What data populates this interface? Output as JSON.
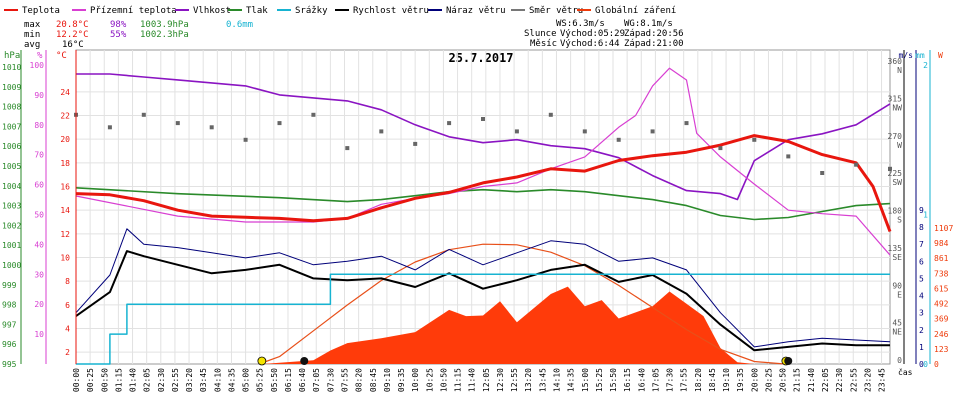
{
  "chart_data": {
    "type": "line",
    "title": "25.7.2017",
    "legend": [
      {
        "label": "Teplota",
        "color": "#e8160e"
      },
      {
        "label": "Přízemní teplota",
        "color": "#d83fd2"
      },
      {
        "label": "Vlhkost",
        "color": "#8a14c2"
      },
      {
        "label": "Tlak",
        "color": "#2a8a2a"
      },
      {
        "label": "Srážky",
        "color": "#17b3d1"
      },
      {
        "label": "Rychlost větru",
        "color": "#000000"
      },
      {
        "label": "Náraz větru",
        "color": "#00007a"
      },
      {
        "label": "Směr větru",
        "color": "#777777"
      },
      {
        "label": "Globální záření",
        "color": "#ee3a0a"
      }
    ],
    "stats": {
      "max_label": "max",
      "max_temp": "20.8°C",
      "max_hum": "98%",
      "max_press": "1003.9hPa",
      "max_rain": "0.6mm",
      "min_label": "min",
      "min_temp": "12.2°C",
      "min_hum": "55%",
      "min_press": "1002.3hPa",
      "avg_label": "avg",
      "avg_temp": "16°C"
    },
    "wind": {
      "ws": "WS:6.3m/s",
      "wg": "WG:8.1m/s"
    },
    "sun": {
      "label": "Slunce",
      "rise": "Východ:05:29",
      "set": "Západ:20:56"
    },
    "moon": {
      "label": "Měsíc",
      "rise": "Východ:6:44",
      "set": "Západ:21:00"
    },
    "axis_units": {
      "pressure": "hPa",
      "humidity": "%",
      "temp": "°C",
      "windspeed": "m/s",
      "rain": "mm",
      "radiation": "W",
      "time": "čas"
    },
    "pressure_ticks": [
      "1010",
      "1009",
      "1008",
      "1007",
      "1006",
      "1005",
      "1004",
      "1003",
      "1002",
      "1001",
      "1000",
      "999",
      "998",
      "997",
      "996",
      "995"
    ],
    "humidity_ticks": [
      "100",
      "90",
      "80",
      "70",
      "60",
      "50",
      "40",
      "30",
      "20",
      "10"
    ],
    "temp_ticks": [
      "24",
      "22",
      "20",
      "18",
      "16",
      "14",
      "12",
      "10",
      "8",
      "6",
      "4",
      "2"
    ],
    "dir_ticks": [
      "360",
      "N",
      "315",
      "NW",
      "270",
      "W",
      "225",
      "SW",
      "180",
      "S",
      "135",
      "SE",
      "90",
      "E",
      "45",
      "NE",
      "0"
    ],
    "windspeed_ticks": [
      "9",
      "8",
      "7",
      "6",
      "5",
      "4",
      "3",
      "2",
      "1",
      "0"
    ],
    "rain_ticks": [
      "2",
      "1",
      "0"
    ],
    "radiation_ticks": [
      "1107",
      "984",
      "861",
      "738",
      "615",
      "492",
      "369",
      "246",
      "123",
      "0"
    ],
    "time_labels": [
      "00:00",
      "00:25",
      "00:50",
      "01:15",
      "01:40",
      "02:05",
      "02:30",
      "02:55",
      "03:20",
      "03:45",
      "04:10",
      "04:35",
      "05:00",
      "05:25",
      "05:50",
      "06:15",
      "06:40",
      "07:05",
      "07:30",
      "07:55",
      "08:20",
      "08:45",
      "09:10",
      "09:35",
      "10:00",
      "10:25",
      "10:50",
      "11:15",
      "11:40",
      "12:05",
      "12:30",
      "12:55",
      "13:20",
      "13:45",
      "14:10",
      "14:35",
      "15:00",
      "15:25",
      "15:50",
      "16:15",
      "16:40",
      "17:05",
      "17:30",
      "17:55",
      "18:20",
      "18:45",
      "19:10",
      "19:35",
      "20:00",
      "20:25",
      "20:50",
      "21:15",
      "21:40",
      "22:05",
      "22:30",
      "22:55",
      "23:20",
      "23:45"
    ],
    "series": {
      "temperature_c": [
        [
          0,
          15.4
        ],
        [
          1,
          15.3
        ],
        [
          2,
          14.8
        ],
        [
          3,
          14.0
        ],
        [
          4,
          13.5
        ],
        [
          5,
          13.4
        ],
        [
          6,
          13.3
        ],
        [
          7,
          13.1
        ],
        [
          8,
          13.3
        ],
        [
          9,
          14.2
        ],
        [
          10,
          15.0
        ],
        [
          11,
          15.5
        ],
        [
          12,
          16.3
        ],
        [
          13,
          16.8
        ],
        [
          14,
          17.5
        ],
        [
          15,
          17.3
        ],
        [
          16,
          18.2
        ],
        [
          17,
          18.6
        ],
        [
          18,
          18.9
        ],
        [
          19,
          19.5
        ],
        [
          20,
          20.3
        ],
        [
          21,
          19.8
        ],
        [
          22,
          18.7
        ],
        [
          23,
          18.0
        ],
        [
          23.5,
          16.0
        ],
        [
          24,
          12.2
        ]
      ],
      "ground_temperature_c": [
        [
          0,
          15.2
        ],
        [
          3,
          13.5
        ],
        [
          5,
          13.0
        ],
        [
          7,
          13.0
        ],
        [
          8,
          13.3
        ],
        [
          9,
          14.5
        ],
        [
          10,
          15.0
        ],
        [
          11,
          15.4
        ],
        [
          12,
          16.0
        ],
        [
          13,
          16.3
        ],
        [
          14,
          17.5
        ],
        [
          15,
          18.5
        ],
        [
          16,
          21.0
        ],
        [
          16.5,
          22.0
        ],
        [
          17,
          24.5
        ],
        [
          17.5,
          26.0
        ],
        [
          18,
          25.0
        ],
        [
          18.3,
          20.5
        ],
        [
          19,
          18.5
        ],
        [
          20,
          16.2
        ],
        [
          21,
          14.0
        ],
        [
          22,
          13.7
        ],
        [
          23,
          13.5
        ],
        [
          24,
          10.2
        ]
      ],
      "humidity_pct": [
        [
          0,
          97
        ],
        [
          1,
          97
        ],
        [
          2,
          96
        ],
        [
          3,
          95
        ],
        [
          4,
          94
        ],
        [
          5,
          93
        ],
        [
          6,
          90
        ],
        [
          7,
          89
        ],
        [
          8,
          88
        ],
        [
          9,
          85
        ],
        [
          10,
          80
        ],
        [
          11,
          76
        ],
        [
          12,
          74
        ],
        [
          13,
          75
        ],
        [
          14,
          73
        ],
        [
          15,
          72
        ],
        [
          16,
          69
        ],
        [
          17,
          63
        ],
        [
          18,
          58
        ],
        [
          19,
          57
        ],
        [
          19.5,
          55
        ],
        [
          20,
          68
        ],
        [
          21,
          75
        ],
        [
          22,
          77
        ],
        [
          23,
          80
        ],
        [
          24,
          87
        ]
      ],
      "pressure_hpa": [
        [
          0,
          1003.9
        ],
        [
          3,
          1003.6
        ],
        [
          6,
          1003.4
        ],
        [
          8,
          1003.2
        ],
        [
          9,
          1003.3
        ],
        [
          10,
          1003.5
        ],
        [
          11,
          1003.7
        ],
        [
          12,
          1003.8
        ],
        [
          13,
          1003.7
        ],
        [
          14,
          1003.8
        ],
        [
          15,
          1003.7
        ],
        [
          16,
          1003.5
        ],
        [
          17,
          1003.3
        ],
        [
          18,
          1003.0
        ],
        [
          19,
          1002.5
        ],
        [
          20,
          1002.3
        ],
        [
          21,
          1002.4
        ],
        [
          22,
          1002.7
        ],
        [
          23,
          1003.0
        ],
        [
          24,
          1003.1
        ]
      ],
      "rain_mm": [
        [
          0,
          0
        ],
        [
          1,
          0.2
        ],
        [
          1.5,
          0.4
        ],
        [
          2,
          0.4
        ],
        [
          7.5,
          0.6
        ],
        [
          24,
          0.6
        ]
      ],
      "wind_speed_ms": [
        [
          0,
          2.8
        ],
        [
          1,
          4.2
        ],
        [
          1.5,
          6.6
        ],
        [
          2,
          6.3
        ],
        [
          3,
          5.8
        ],
        [
          4,
          5.3
        ],
        [
          5,
          5.5
        ],
        [
          6,
          5.8
        ],
        [
          7,
          5.0
        ],
        [
          8,
          4.9
        ],
        [
          9,
          5.0
        ],
        [
          10,
          4.5
        ],
        [
          11,
          5.3
        ],
        [
          12,
          4.4
        ],
        [
          13,
          4.9
        ],
        [
          14,
          5.5
        ],
        [
          15,
          5.8
        ],
        [
          16,
          4.8
        ],
        [
          17,
          5.2
        ],
        [
          18,
          4.1
        ],
        [
          19,
          2.3
        ],
        [
          20,
          0.8
        ],
        [
          21,
          1.0
        ],
        [
          22,
          1.2
        ],
        [
          23,
          1.1
        ],
        [
          24,
          1.1
        ]
      ],
      "wind_gust_ms": [
        [
          0,
          3.0
        ],
        [
          1,
          5.2
        ],
        [
          1.5,
          7.9
        ],
        [
          2,
          7.0
        ],
        [
          3,
          6.8
        ],
        [
          4,
          6.5
        ],
        [
          5,
          6.2
        ],
        [
          6,
          6.5
        ],
        [
          7,
          5.8
        ],
        [
          8,
          6.0
        ],
        [
          9,
          6.3
        ],
        [
          10,
          5.5
        ],
        [
          11,
          6.7
        ],
        [
          12,
          5.8
        ],
        [
          13,
          6.5
        ],
        [
          14,
          7.2
        ],
        [
          15,
          7.0
        ],
        [
          16,
          6.0
        ],
        [
          17,
          6.2
        ],
        [
          18,
          5.5
        ],
        [
          19,
          3.0
        ],
        [
          20,
          1.0
        ],
        [
          21,
          1.3
        ],
        [
          22,
          1.5
        ],
        [
          23,
          1.4
        ],
        [
          24,
          1.3
        ]
      ],
      "wind_direction_deg": [
        [
          0,
          300
        ],
        [
          1,
          285
        ],
        [
          2,
          300
        ],
        [
          3,
          290
        ],
        [
          4,
          285
        ],
        [
          5,
          270
        ],
        [
          6,
          290
        ],
        [
          7,
          300
        ],
        [
          8,
          260
        ],
        [
          9,
          280
        ],
        [
          10,
          265
        ],
        [
          11,
          290
        ],
        [
          12,
          295
        ],
        [
          13,
          280
        ],
        [
          14,
          300
        ],
        [
          15,
          280
        ],
        [
          16,
          270
        ],
        [
          17,
          280
        ],
        [
          18,
          290
        ],
        [
          19,
          260
        ],
        [
          20,
          270
        ],
        [
          21,
          250
        ],
        [
          22,
          230
        ],
        [
          23,
          240
        ],
        [
          24,
          235
        ]
      ],
      "global_radiation_wm2": [
        [
          5.5,
          0
        ],
        [
          7,
          30
        ],
        [
          7.5,
          110
        ],
        [
          8,
          170
        ],
        [
          9,
          210
        ],
        [
          10,
          260
        ],
        [
          11,
          440
        ],
        [
          11.5,
          390
        ],
        [
          12,
          395
        ],
        [
          12.5,
          510
        ],
        [
          13,
          340
        ],
        [
          14,
          570
        ],
        [
          14.5,
          630
        ],
        [
          15,
          470
        ],
        [
          15.5,
          520
        ],
        [
          16,
          370
        ],
        [
          17,
          470
        ],
        [
          17.5,
          590
        ],
        [
          18,
          490
        ],
        [
          18.5,
          390
        ],
        [
          19,
          130
        ],
        [
          19.5,
          15
        ],
        [
          20,
          0
        ]
      ],
      "max_radiation_wm2": [
        [
          5.4,
          0
        ],
        [
          6,
          60
        ],
        [
          7,
          270
        ],
        [
          8,
          480
        ],
        [
          9,
          680
        ],
        [
          10,
          830
        ],
        [
          11,
          930
        ],
        [
          12,
          975
        ],
        [
          13,
          970
        ],
        [
          14,
          910
        ],
        [
          15,
          800
        ],
        [
          16,
          640
        ],
        [
          17,
          460
        ],
        [
          18,
          280
        ],
        [
          19,
          120
        ],
        [
          20,
          20
        ],
        [
          20.9,
          0
        ]
      ]
    },
    "markers": {
      "sunrise_h": 5.48,
      "sunset_h": 20.93,
      "moonrise_h": 6.73,
      "moonset_h": 21.0
    }
  }
}
